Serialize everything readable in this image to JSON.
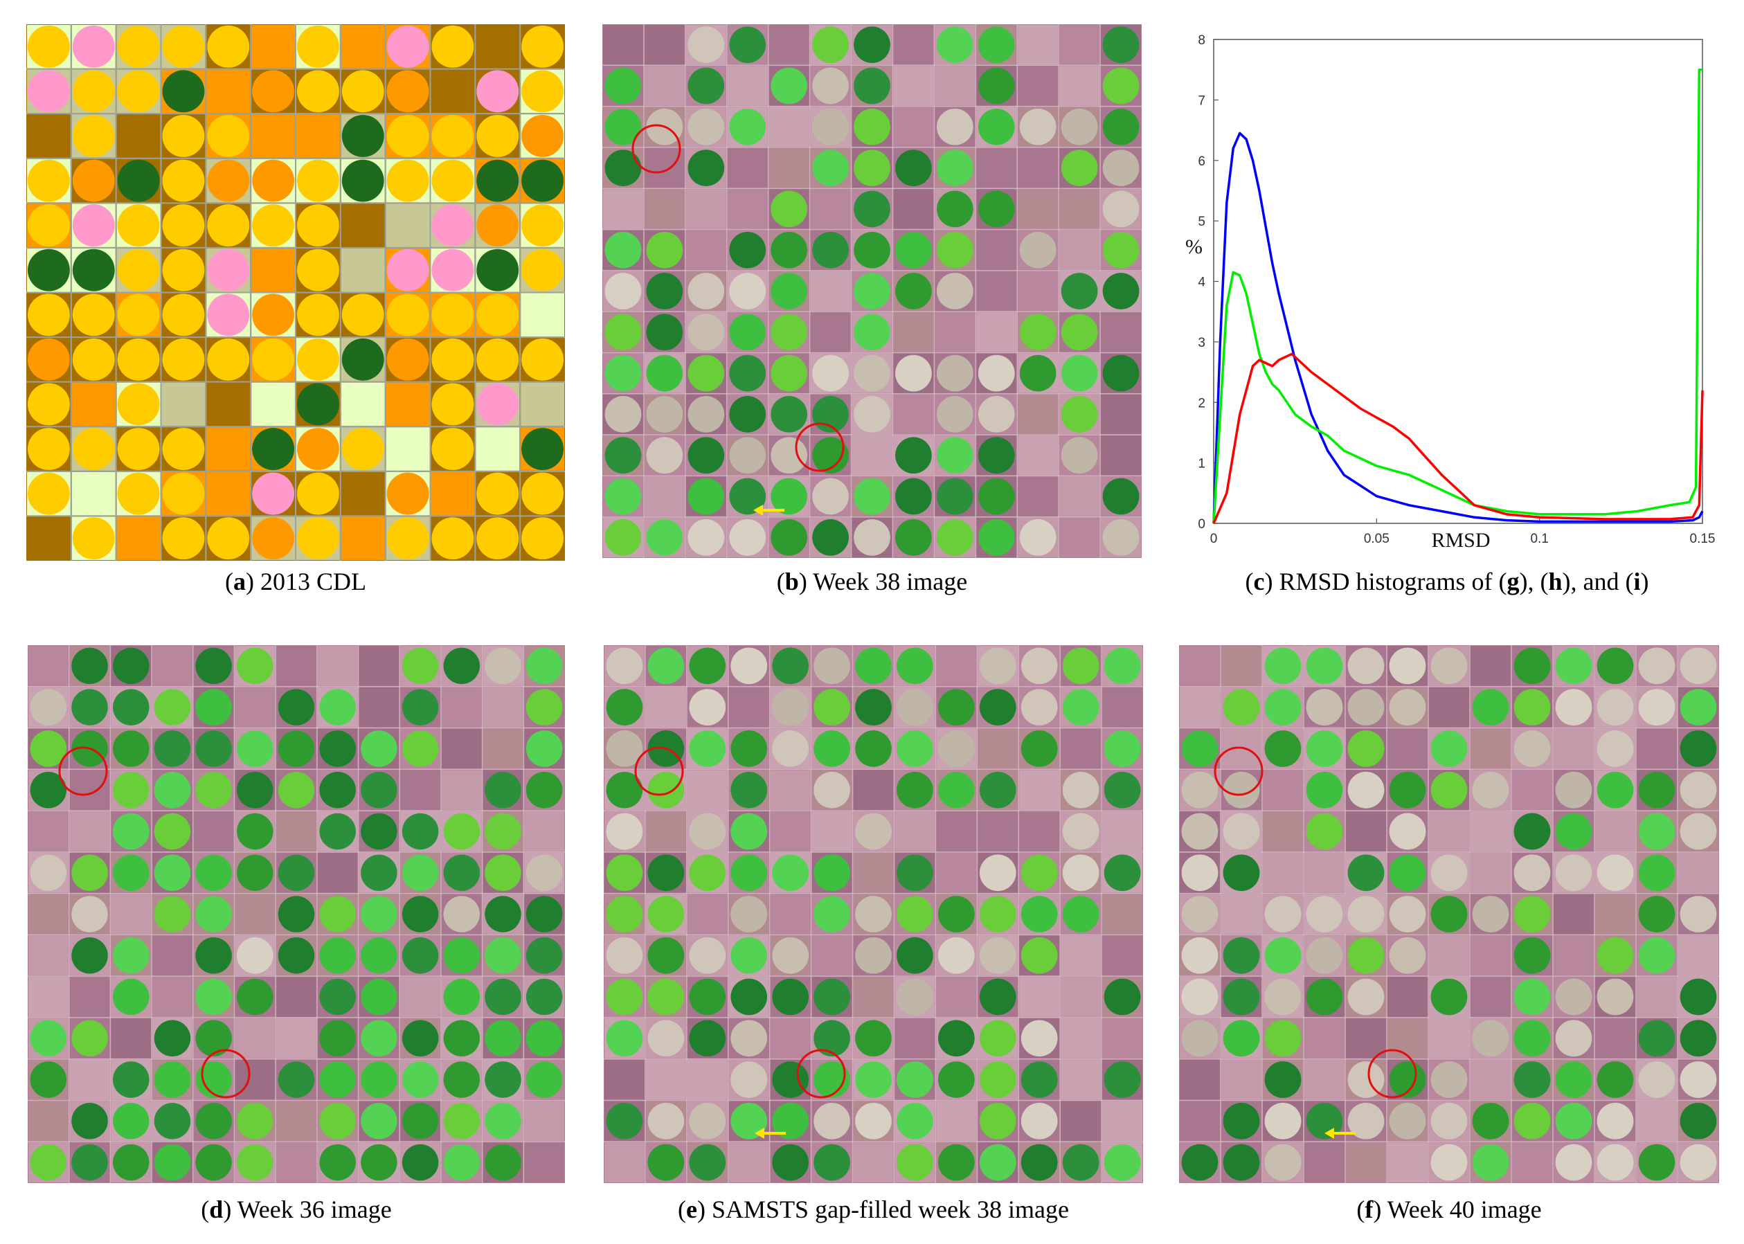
{
  "figure": {
    "panels": [
      {
        "id": "a",
        "letter": "a",
        "before": "(",
        "after": ") 2013 CDL"
      },
      {
        "id": "b",
        "letter": "b",
        "before": "(",
        "after": ") Week 38 image"
      },
      {
        "id": "d",
        "letter": "d",
        "before": "(",
        "after": ") Week 36 image"
      },
      {
        "id": "e",
        "letter": "e",
        "before": "(",
        "after": ") SAMSTS gap-filled week 38 image"
      },
      {
        "id": "f",
        "letter": "f",
        "before": "(",
        "after": ") Week 40 image"
      }
    ],
    "caption_c": {
      "open": "(",
      "c": "c",
      "text1": ") RMSD histograms of (",
      "g": "g",
      "text2": "), (",
      "h": "h",
      "text3": "), and (",
      "i": "i",
      "text4": ")"
    }
  },
  "colors": {
    "cdl_corn": "#ffcc00",
    "cdl_winter_wheat": "#a56f00",
    "cdl_sorghum": "#ff9900",
    "cdl_alfalfa": "#ff99cc",
    "cdl_fallow": "#c8c896",
    "cdl_grass": "#e8ffbf",
    "cdl_soy": "#1e6b1e",
    "img_bg": "#b07d95",
    "veg_green": "#3fbf3f",
    "series_blue": "#0000ff",
    "series_green": "#00ee00",
    "series_red": "#ff0000"
  },
  "chart_data": {
    "type": "line",
    "title": "",
    "xlabel": "RMSD",
    "ylabel": "%",
    "xlim": [
      0,
      0.15
    ],
    "ylim": [
      0,
      8
    ],
    "xticks": [
      "0",
      "0.05",
      "0.1",
      "0.15"
    ],
    "xtick_values": [
      0,
      0.05,
      0.1,
      0.15
    ],
    "yticks": [
      "0",
      "1",
      "2",
      "3",
      "4",
      "5",
      "6",
      "7",
      "8"
    ],
    "series": [
      {
        "name": "blue",
        "color": "#0000ff",
        "x": [
          0,
          0.002,
          0.004,
          0.006,
          0.008,
          0.01,
          0.012,
          0.014,
          0.016,
          0.018,
          0.02,
          0.025,
          0.03,
          0.035,
          0.04,
          0.05,
          0.06,
          0.07,
          0.08,
          0.09,
          0.1,
          0.12,
          0.14,
          0.147,
          0.149,
          0.15
        ],
        "y": [
          0,
          3.0,
          5.3,
          6.2,
          6.45,
          6.35,
          6.0,
          5.5,
          4.9,
          4.3,
          3.8,
          2.7,
          1.8,
          1.2,
          0.8,
          0.45,
          0.3,
          0.2,
          0.1,
          0.05,
          0.03,
          0.03,
          0.03,
          0.05,
          0.1,
          0.2
        ]
      },
      {
        "name": "green",
        "color": "#00ee00",
        "x": [
          0,
          0.002,
          0.004,
          0.006,
          0.008,
          0.01,
          0.012,
          0.014,
          0.016,
          0.018,
          0.02,
          0.025,
          0.03,
          0.035,
          0.04,
          0.05,
          0.06,
          0.07,
          0.08,
          0.09,
          0.1,
          0.11,
          0.12,
          0.13,
          0.14,
          0.146,
          0.148,
          0.149,
          0.15
        ],
        "y": [
          0,
          1.8,
          3.6,
          4.15,
          4.1,
          3.8,
          3.3,
          2.8,
          2.5,
          2.3,
          2.2,
          1.8,
          1.6,
          1.45,
          1.2,
          0.95,
          0.8,
          0.55,
          0.3,
          0.2,
          0.15,
          0.15,
          0.15,
          0.2,
          0.3,
          0.35,
          0.6,
          7.5,
          7.5
        ]
      },
      {
        "name": "red",
        "color": "#ff0000",
        "x": [
          0,
          0.004,
          0.008,
          0.012,
          0.014,
          0.016,
          0.018,
          0.02,
          0.022,
          0.024,
          0.026,
          0.03,
          0.035,
          0.04,
          0.045,
          0.05,
          0.055,
          0.06,
          0.065,
          0.07,
          0.075,
          0.08,
          0.09,
          0.1,
          0.12,
          0.14,
          0.147,
          0.149,
          0.15
        ],
        "y": [
          0,
          0.5,
          1.8,
          2.6,
          2.7,
          2.65,
          2.6,
          2.7,
          2.75,
          2.8,
          2.7,
          2.5,
          2.3,
          2.1,
          1.9,
          1.75,
          1.6,
          1.4,
          1.1,
          0.8,
          0.55,
          0.3,
          0.15,
          0.1,
          0.07,
          0.07,
          0.1,
          0.3,
          2.2
        ]
      }
    ]
  }
}
